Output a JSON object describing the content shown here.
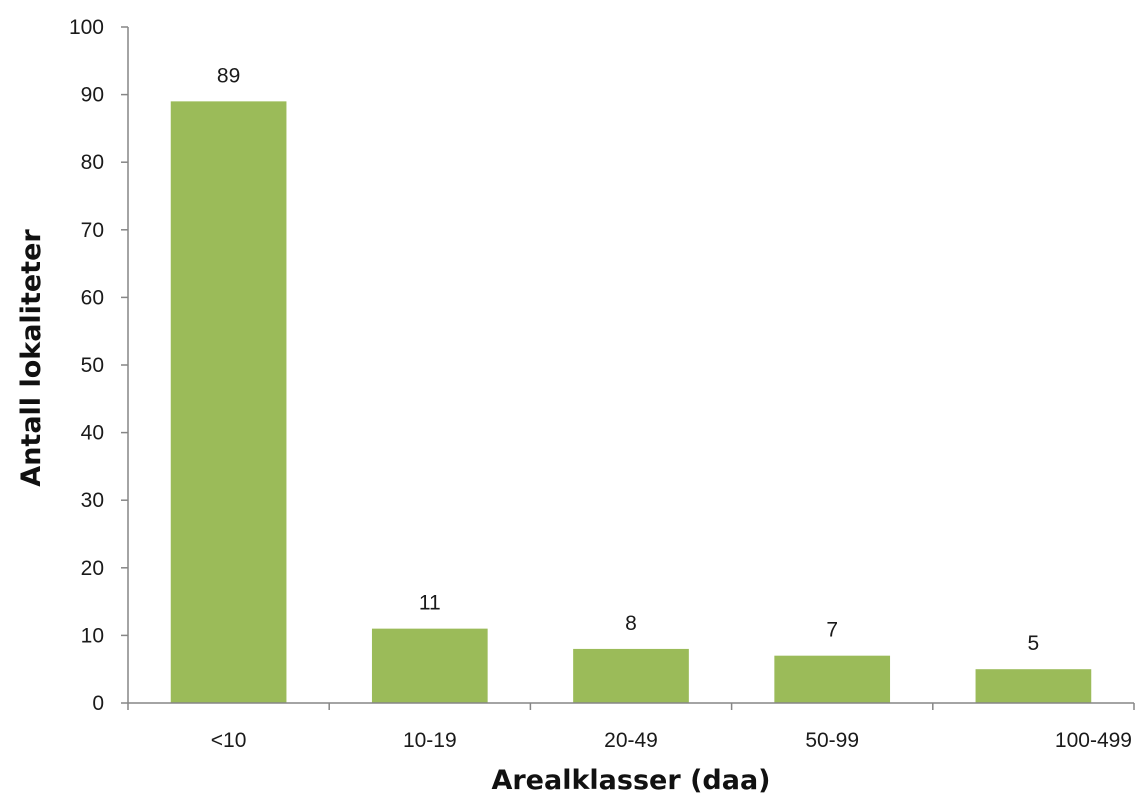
{
  "chart_data": {
    "type": "bar",
    "categories": [
      "<10",
      "10-19",
      "20-49",
      "50-99",
      "100-499"
    ],
    "values": [
      89,
      11,
      8,
      7,
      5
    ],
    "data_labels": [
      "89",
      "11",
      "8",
      "7",
      "5"
    ],
    "title": "",
    "xlabel": "Arealklasser (daa)",
    "ylabel": "Antall lokaliteter",
    "ylim": [
      0,
      100
    ],
    "yticks": [
      0,
      10,
      20,
      30,
      40,
      50,
      60,
      70,
      80,
      90,
      100
    ],
    "ytick_labels": [
      "0",
      "10",
      "20",
      "30",
      "40",
      "50",
      "60",
      "70",
      "80",
      "90",
      "100"
    ],
    "grid": false,
    "legend": "none",
    "bar_color": "#9bbb59",
    "axis_color": "#868686"
  }
}
